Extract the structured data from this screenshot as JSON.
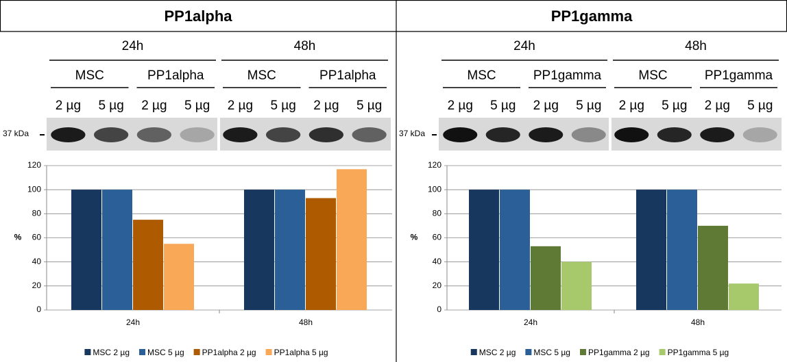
{
  "panels": [
    {
      "title": "PP1alpha",
      "time_labels": [
        "24h",
        "48h"
      ],
      "group_labels": [
        "MSC",
        "PP1alpha",
        "MSC",
        "PP1alpha"
      ],
      "dose_labels": [
        "2 µg",
        "5 µg",
        "2 µg",
        "5 µg",
        "2 µg",
        "5 µg",
        "2 µg",
        "5 µg"
      ],
      "marker": "37 kDa"
    },
    {
      "title": "PP1gamma",
      "time_labels": [
        "24h",
        "48h"
      ],
      "group_labels": [
        "MSC",
        "PP1gamma",
        "MSC",
        "PP1gamma"
      ],
      "dose_labels": [
        "2 µg",
        "5 µg",
        "2 µg",
        "5 µg",
        "2 µg",
        "5 µg",
        "2 µg",
        "5 µg"
      ],
      "marker": "37 kDa"
    }
  ],
  "chart_data": [
    {
      "type": "bar",
      "y_label": "%",
      "categories": [
        "24h",
        "48h"
      ],
      "series": [
        {
          "name": "MSC 2 µg",
          "color": "#17375e",
          "values": [
            100,
            100
          ]
        },
        {
          "name": "MSC 5 µg",
          "color": "#2b5f97",
          "values": [
            100,
            100
          ]
        },
        {
          "name": "PP1alpha 2 µg",
          "color": "#ad5a00",
          "values": [
            75,
            93
          ]
        },
        {
          "name": "PP1alpha 5 µg",
          "color": "#f9a857",
          "values": [
            55,
            117
          ]
        }
      ],
      "ylim": [
        0,
        120
      ],
      "yticks": [
        0,
        20,
        40,
        60,
        80,
        100,
        120
      ],
      "grid": true,
      "legend": "bottom"
    },
    {
      "type": "bar",
      "y_label": "%",
      "categories": [
        "24h",
        "48h"
      ],
      "series": [
        {
          "name": "MSC 2 µg",
          "color": "#17375e",
          "values": [
            100,
            100
          ]
        },
        {
          "name": "MSC 5 µg",
          "color": "#2b5f97",
          "values": [
            100,
            100
          ]
        },
        {
          "name": "PP1gamma 2 µg",
          "color": "#5f7a35",
          "values": [
            53,
            70
          ]
        },
        {
          "name": "PP1gamma 5 µg",
          "color": "#a7c86b",
          "values": [
            40,
            22
          ]
        }
      ],
      "ylim": [
        0,
        120
      ],
      "yticks": [
        0,
        20,
        40,
        60,
        80,
        100,
        120
      ],
      "grid": true,
      "legend": "bottom"
    }
  ]
}
